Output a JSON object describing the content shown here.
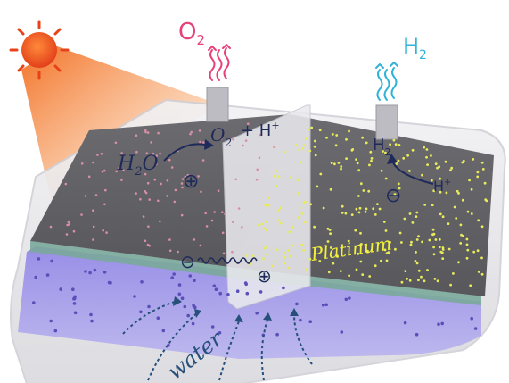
{
  "labels": {
    "oxygen": "O",
    "oxygen_sub": "2",
    "hydrogen": "H",
    "hydrogen_sub": "2",
    "reaction_reactant": "H",
    "reaction_reactant_sub": "2",
    "reaction_reactant_tail": "O",
    "reaction_product": "O",
    "reaction_product_sub": "2",
    "reaction_plus": "+ H",
    "reaction_plus_sup": "+",
    "h2_near_cathode": "H",
    "h2_near_cathode_sub": "2",
    "proton": "H",
    "proton_sup": "+",
    "catalyst": "Platinum",
    "water": "water",
    "positive": "⊕",
    "negative": "⊖"
  },
  "colors": {
    "oxygen": "#e8417a",
    "hydrogen": "#2fb3d6",
    "sun": "#f0541e",
    "sunbeam": "#f7862f",
    "catalyst_text": "#f2f03a",
    "ink": "#1f2a5a",
    "water_arrow": "#26507a"
  },
  "icons": {
    "sun": "sun-icon",
    "oxygen_bubbles": "rising-gas-icon",
    "hydrogen_bubbles": "rising-gas-icon"
  }
}
